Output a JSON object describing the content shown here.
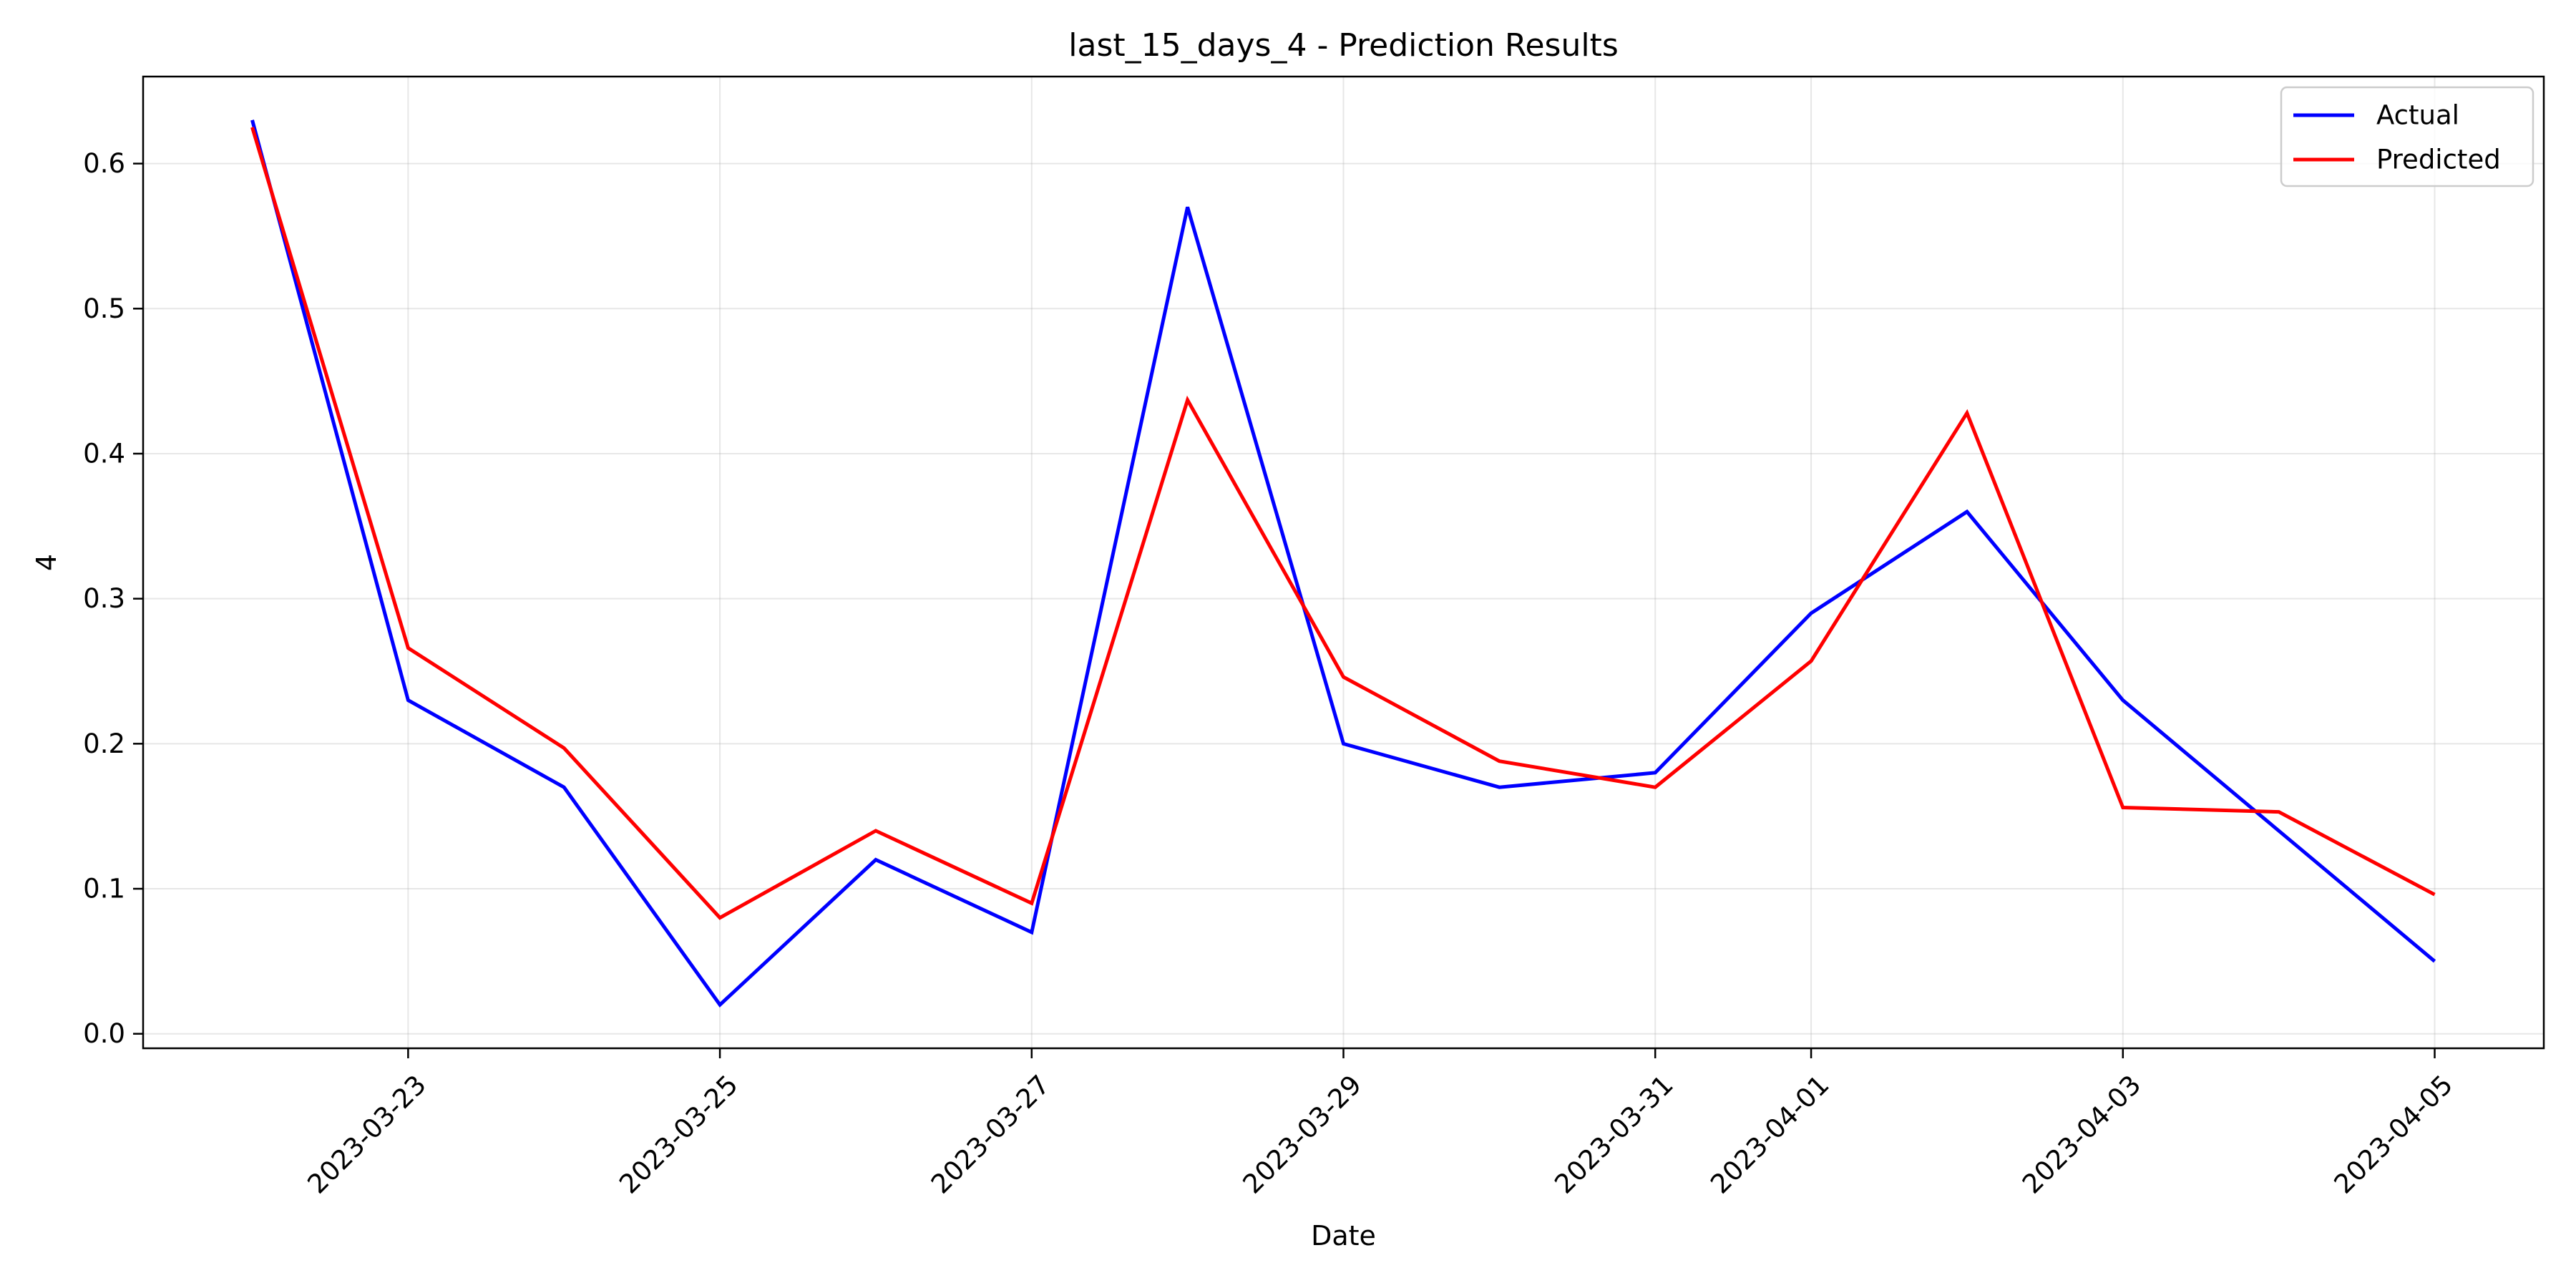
{
  "chart_data": {
    "type": "line",
    "title": "last_15_days_4 - Prediction Results",
    "xlabel": "Date",
    "ylabel": "4",
    "grid": true,
    "legend_position": "top-right",
    "x": [
      "2023-03-22",
      "2023-03-23",
      "2023-03-24",
      "2023-03-25",
      "2023-03-26",
      "2023-03-27",
      "2023-03-28",
      "2023-03-29",
      "2023-03-30",
      "2023-03-31",
      "2023-04-01",
      "2023-04-02",
      "2023-04-03",
      "2023-04-04",
      "2023-04-05"
    ],
    "x_ticks": [
      "2023-03-23",
      "2023-03-25",
      "2023-03-27",
      "2023-03-29",
      "2023-03-31",
      "2023-04-01",
      "2023-04-03",
      "2023-04-05"
    ],
    "y_ticks": [
      "0.0",
      "0.1",
      "0.2",
      "0.3",
      "0.4",
      "0.5",
      "0.6"
    ],
    "ylim": [
      -0.01,
      0.66
    ],
    "xlim": [
      "2023-03-21T07:12",
      "2023-04-05T16:48"
    ],
    "series": [
      {
        "name": "Actual",
        "color": "#0000ff",
        "values": [
          0.63,
          0.23,
          0.17,
          0.02,
          0.12,
          0.07,
          0.57,
          0.2,
          0.17,
          0.18,
          0.29,
          0.36,
          0.23,
          0.14,
          0.05
        ]
      },
      {
        "name": "Predicted",
        "color": "#ff0000",
        "values": [
          0.625,
          0.266,
          0.197,
          0.08,
          0.14,
          0.09,
          0.437,
          0.246,
          0.188,
          0.17,
          0.257,
          0.428,
          0.156,
          0.153,
          0.096
        ]
      }
    ]
  }
}
